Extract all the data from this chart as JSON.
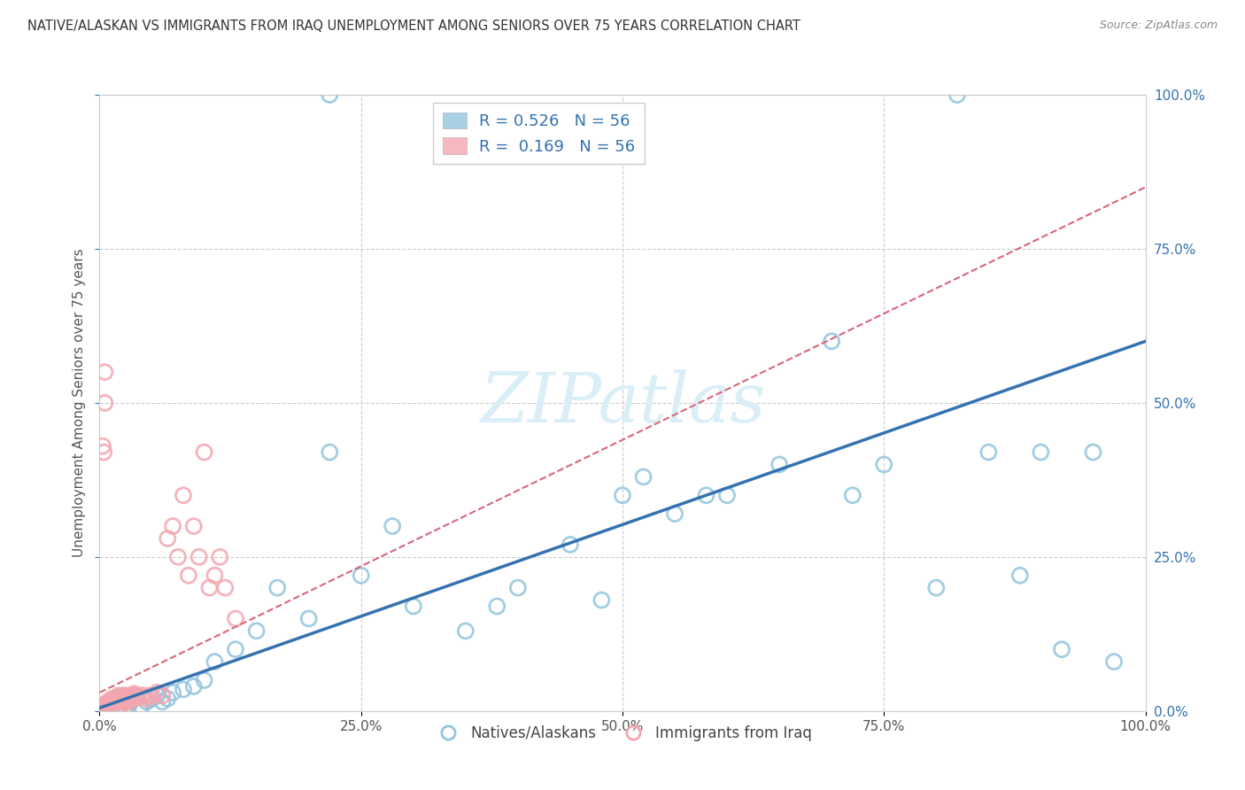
{
  "title": "NATIVE/ALASKAN VS IMMIGRANTS FROM IRAQ UNEMPLOYMENT AMONG SENIORS OVER 75 YEARS CORRELATION CHART",
  "source": "Source: ZipAtlas.com",
  "ylabel": "Unemployment Among Seniors over 75 years",
  "xlim": [
    0,
    1.0
  ],
  "ylim": [
    0,
    1.0
  ],
  "xticks": [
    0.0,
    0.25,
    0.5,
    0.75,
    1.0
  ],
  "xticklabels": [
    "0.0%",
    "25.0%",
    "50.0%",
    "75.0%",
    "100.0%"
  ],
  "yticks": [
    0.0,
    0.25,
    0.5,
    0.75,
    1.0
  ],
  "yticklabels": [
    "0.0%",
    "25.0%",
    "50.0%",
    "75.0%",
    "100.0%"
  ],
  "blue_R": "0.526",
  "blue_N": "56",
  "pink_R": "0.169",
  "pink_N": "56",
  "blue_color": "#92c5de",
  "pink_color": "#f4a6b0",
  "blue_line_color": "#3572b0",
  "pink_line_color": "#d9667a",
  "watermark_color": "#daeef8",
  "legend_edge_color": "#cccccc",
  "legend_text_color": "#3572b0",
  "grid_color": "#cccccc",
  "title_color": "#333333",
  "source_color": "#888888",
  "tick_color": "#555555",
  "ylabel_color": "#555555",
  "blue_points_x": [
    0.005,
    0.008,
    0.01,
    0.012,
    0.015,
    0.018,
    0.02,
    0.022,
    0.025,
    0.028,
    0.03,
    0.032,
    0.035,
    0.038,
    0.04,
    0.045,
    0.05,
    0.055,
    0.06,
    0.065,
    0.07,
    0.08,
    0.09,
    0.1,
    0.11,
    0.13,
    0.15,
    0.17,
    0.2,
    0.22,
    0.25,
    0.28,
    0.3,
    0.35,
    0.38,
    0.4,
    0.45,
    0.48,
    0.5,
    0.52,
    0.55,
    0.58,
    0.6,
    0.65,
    0.7,
    0.72,
    0.75,
    0.8,
    0.85,
    0.88,
    0.9,
    0.92,
    0.95,
    0.97,
    0.22,
    0.82
  ],
  "blue_points_y": [
    0.005,
    0.008,
    0.01,
    0.012,
    0.015,
    0.018,
    0.02,
    0.025,
    0.005,
    0.01,
    0.015,
    0.02,
    0.025,
    0.005,
    0.008,
    0.015,
    0.02,
    0.025,
    0.015,
    0.02,
    0.03,
    0.035,
    0.04,
    0.05,
    0.08,
    0.1,
    0.13,
    0.2,
    0.15,
    0.42,
    0.22,
    0.3,
    0.17,
    0.13,
    0.17,
    0.2,
    0.27,
    0.18,
    0.35,
    0.38,
    0.32,
    0.35,
    0.35,
    0.4,
    0.6,
    0.35,
    0.4,
    0.2,
    0.42,
    0.22,
    0.42,
    0.1,
    0.42,
    0.08,
    1.0,
    1.0
  ],
  "pink_points_x": [
    0.002,
    0.003,
    0.004,
    0.005,
    0.005,
    0.006,
    0.007,
    0.008,
    0.008,
    0.009,
    0.01,
    0.01,
    0.012,
    0.012,
    0.013,
    0.014,
    0.015,
    0.016,
    0.017,
    0.018,
    0.019,
    0.02,
    0.02,
    0.022,
    0.023,
    0.025,
    0.025,
    0.027,
    0.028,
    0.03,
    0.032,
    0.033,
    0.035,
    0.037,
    0.04,
    0.042,
    0.045,
    0.048,
    0.05,
    0.055,
    0.06,
    0.065,
    0.07,
    0.075,
    0.08,
    0.085,
    0.09,
    0.095,
    0.1,
    0.105,
    0.11,
    0.115,
    0.12,
    0.13,
    0.003,
    0.004
  ],
  "pink_points_y": [
    0.005,
    0.008,
    0.01,
    0.55,
    0.5,
    0.008,
    0.005,
    0.01,
    0.015,
    0.005,
    0.01,
    0.015,
    0.02,
    0.005,
    0.008,
    0.015,
    0.02,
    0.018,
    0.022,
    0.025,
    0.005,
    0.01,
    0.015,
    0.02,
    0.025,
    0.015,
    0.02,
    0.025,
    0.015,
    0.02,
    0.025,
    0.028,
    0.025,
    0.022,
    0.025,
    0.025,
    0.02,
    0.025,
    0.025,
    0.03,
    0.025,
    0.28,
    0.3,
    0.25,
    0.35,
    0.22,
    0.3,
    0.25,
    0.42,
    0.2,
    0.22,
    0.25,
    0.2,
    0.15,
    0.43,
    0.42
  ],
  "blue_line_x": [
    0.0,
    1.0
  ],
  "blue_line_y": [
    0.005,
    0.6
  ],
  "pink_line_x": [
    0.0,
    1.0
  ],
  "pink_line_y": [
    0.03,
    0.85
  ]
}
